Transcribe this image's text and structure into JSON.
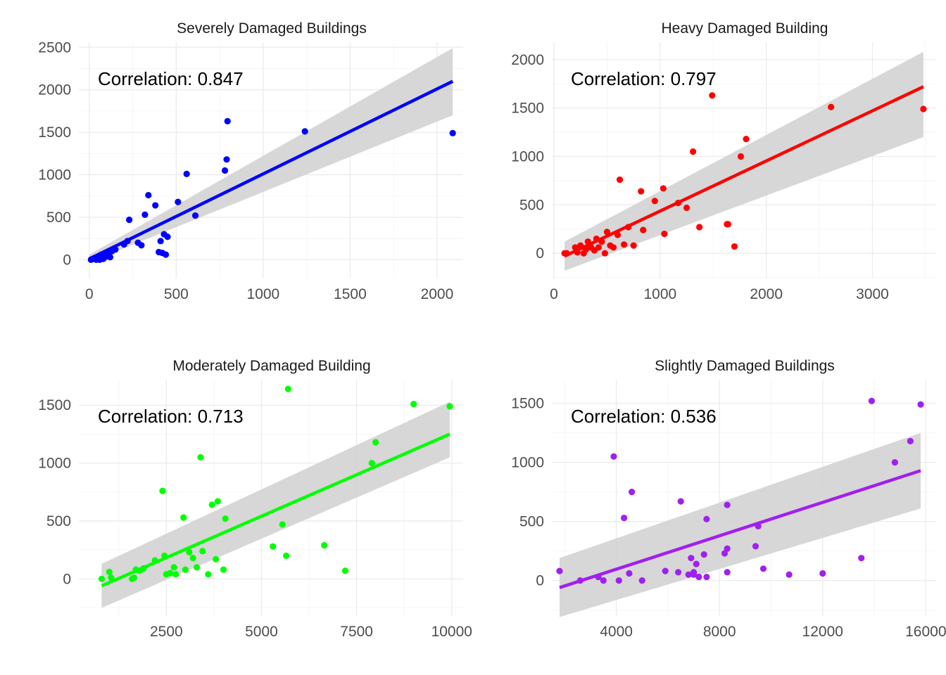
{
  "figure": {
    "background": "#ffffff",
    "band_color": "#d3d3d3",
    "grid_color": "#ebebeb"
  },
  "chart_data": [
    {
      "type": "scatter",
      "title": "Severely Damaged Buildings",
      "annotation": "Correlation: 0.847",
      "color": "#0000ff",
      "xlim": [
        -60,
        2150
      ],
      "ylim": [
        -220,
        2560
      ],
      "x_ticks": [
        0,
        500,
        1000,
        1500,
        2000
      ],
      "y_ticks": [
        0,
        500,
        1000,
        1500,
        2000,
        2500
      ],
      "x_tick_labels": [
        "0",
        "500",
        "1000",
        "1500",
        "2000"
      ],
      "y_tick_labels": [
        "0",
        "500",
        "1000",
        "1500",
        "2000",
        "2500"
      ],
      "grid": true,
      "series": [
        {
          "x": [
            10,
            20,
            30,
            40,
            50,
            60,
            70,
            80,
            90,
            100,
            110,
            120,
            130,
            150,
            200,
            220,
            230,
            280,
            300,
            320,
            340,
            380,
            400,
            410,
            420,
            430,
            440,
            450,
            510,
            560,
            610,
            780,
            790,
            795,
            1240,
            2090
          ],
          "y": [
            0,
            10,
            20,
            0,
            30,
            0,
            60,
            10,
            30,
            80,
            50,
            30,
            100,
            120,
            180,
            220,
            470,
            200,
            170,
            530,
            760,
            640,
            90,
            220,
            80,
            300,
            60,
            270,
            680,
            1010,
            520,
            1050,
            1180,
            1630,
            1510,
            1490
          ]
        }
      ],
      "fit": {
        "x": [
          0,
          2090
        ],
        "y": [
          10,
          2100
        ],
        "lower": [
          -30,
          1700
        ],
        "upper": [
          60,
          2490
        ]
      }
    },
    {
      "type": "scatter",
      "title": "Heavy Damaged Building",
      "annotation": "Correlation: 0.797",
      "color": "#ff0000",
      "xlim": [
        -20,
        3600
      ],
      "ylim": [
        -260,
        2180
      ],
      "x_ticks": [
        0,
        1000,
        2000,
        3000
      ],
      "y_ticks": [
        0,
        500,
        1000,
        1500,
        2000
      ],
      "x_tick_labels": [
        "0",
        "1000",
        "2000",
        "3000"
      ],
      "y_tick_labels": [
        "0",
        "500",
        "1000",
        "1500",
        "2000"
      ],
      "grid": true,
      "series": [
        {
          "x": [
            100,
            120,
            200,
            220,
            250,
            280,
            300,
            320,
            350,
            380,
            400,
            420,
            450,
            480,
            500,
            530,
            560,
            600,
            620,
            660,
            700,
            750,
            820,
            840,
            950,
            1030,
            1040,
            1170,
            1250,
            1310,
            1370,
            1490,
            1630,
            1640,
            1700,
            1760,
            1810,
            2610,
            3480
          ],
          "y": [
            0,
            0,
            60,
            10,
            80,
            0,
            40,
            120,
            60,
            30,
            150,
            60,
            120,
            0,
            220,
            80,
            60,
            190,
            760,
            90,
            270,
            80,
            640,
            240,
            540,
            670,
            200,
            520,
            470,
            1050,
            270,
            1630,
            300,
            300,
            70,
            1000,
            1180,
            1510,
            1490
          ]
        }
      ],
      "fit": {
        "x": [
          100,
          3480
        ],
        "y": [
          -30,
          1720
        ],
        "lower": [
          -180,
          1200
        ],
        "upper": [
          120,
          2080
        ]
      }
    },
    {
      "type": "scatter",
      "title": "Moderately Damaged Building",
      "annotation": "Correlation: 0.713",
      "color": "#00ff00",
      "xlim": [
        200,
        10300
      ],
      "ylim": [
        -320,
        1720
      ],
      "x_ticks": [
        2500,
        5000,
        7500,
        10000
      ],
      "y_ticks": [
        0,
        500,
        1000,
        1500
      ],
      "x_tick_labels": [
        "2500",
        "5000",
        "7500",
        "10000"
      ],
      "y_tick_labels": [
        "0",
        "500",
        "1000",
        "1500"
      ],
      "grid": true,
      "series": [
        {
          "x": [
            800,
            1000,
            1050,
            1600,
            1650,
            1700,
            1800,
            1900,
            2200,
            2400,
            2450,
            2500,
            2600,
            2700,
            2750,
            2950,
            3000,
            3100,
            3200,
            3300,
            3400,
            3450,
            3600,
            3700,
            3800,
            3850,
            4000,
            4050,
            5300,
            5550,
            5650,
            5700,
            6650,
            7200,
            7900,
            8000,
            9000,
            9950
          ],
          "y": [
            0,
            60,
            10,
            0,
            10,
            80,
            70,
            90,
            160,
            760,
            200,
            40,
            50,
            100,
            40,
            530,
            80,
            230,
            180,
            100,
            1050,
            240,
            40,
            640,
            170,
            670,
            80,
            520,
            280,
            470,
            200,
            1640,
            290,
            70,
            1000,
            1180,
            1510,
            1490
          ]
        }
      ],
      "fit": {
        "x": [
          800,
          9950
        ],
        "y": [
          -60,
          1250
        ],
        "lower": [
          -250,
          1050
        ],
        "upper": [
          130,
          1530
        ]
      }
    },
    {
      "type": "scatter",
      "title": "Slightly Damaged Buildings",
      "annotation": "Correlation: 0.536",
      "color": "#a020f0",
      "xlim": [
        1500,
        16400
      ],
      "ylim": [
        -300,
        1700
      ],
      "x_ticks": [
        4000,
        8000,
        12000,
        16000
      ],
      "y_ticks": [
        0,
        500,
        1000,
        1500
      ],
      "x_tick_labels": [
        "4000",
        "8000",
        "12000",
        "16000"
      ],
      "y_tick_labels": [
        "0",
        "500",
        "1000",
        "1500"
      ],
      "grid": true,
      "series": [
        {
          "x": [
            1800,
            2600,
            3300,
            3500,
            3900,
            4100,
            4300,
            4500,
            4600,
            5000,
            5900,
            6400,
            6500,
            6800,
            6900,
            7000,
            7000,
            7100,
            7200,
            7400,
            7500,
            7500,
            8200,
            8300,
            8300,
            8300,
            9400,
            9500,
            9700,
            10700,
            12000,
            13500,
            13900,
            14800,
            15400,
            15800
          ],
          "y": [
            80,
            0,
            30,
            0,
            1050,
            0,
            530,
            60,
            750,
            0,
            80,
            70,
            670,
            50,
            190,
            70,
            50,
            140,
            30,
            220,
            30,
            520,
            230,
            270,
            70,
            640,
            290,
            460,
            100,
            50,
            60,
            190,
            1520,
            1000,
            1180,
            1490
          ]
        }
      ],
      "fit": {
        "x": [
          1800,
          15800
        ],
        "y": [
          -60,
          930
        ],
        "lower": [
          -310,
          610
        ],
        "upper": [
          190,
          1250
        ]
      }
    }
  ]
}
